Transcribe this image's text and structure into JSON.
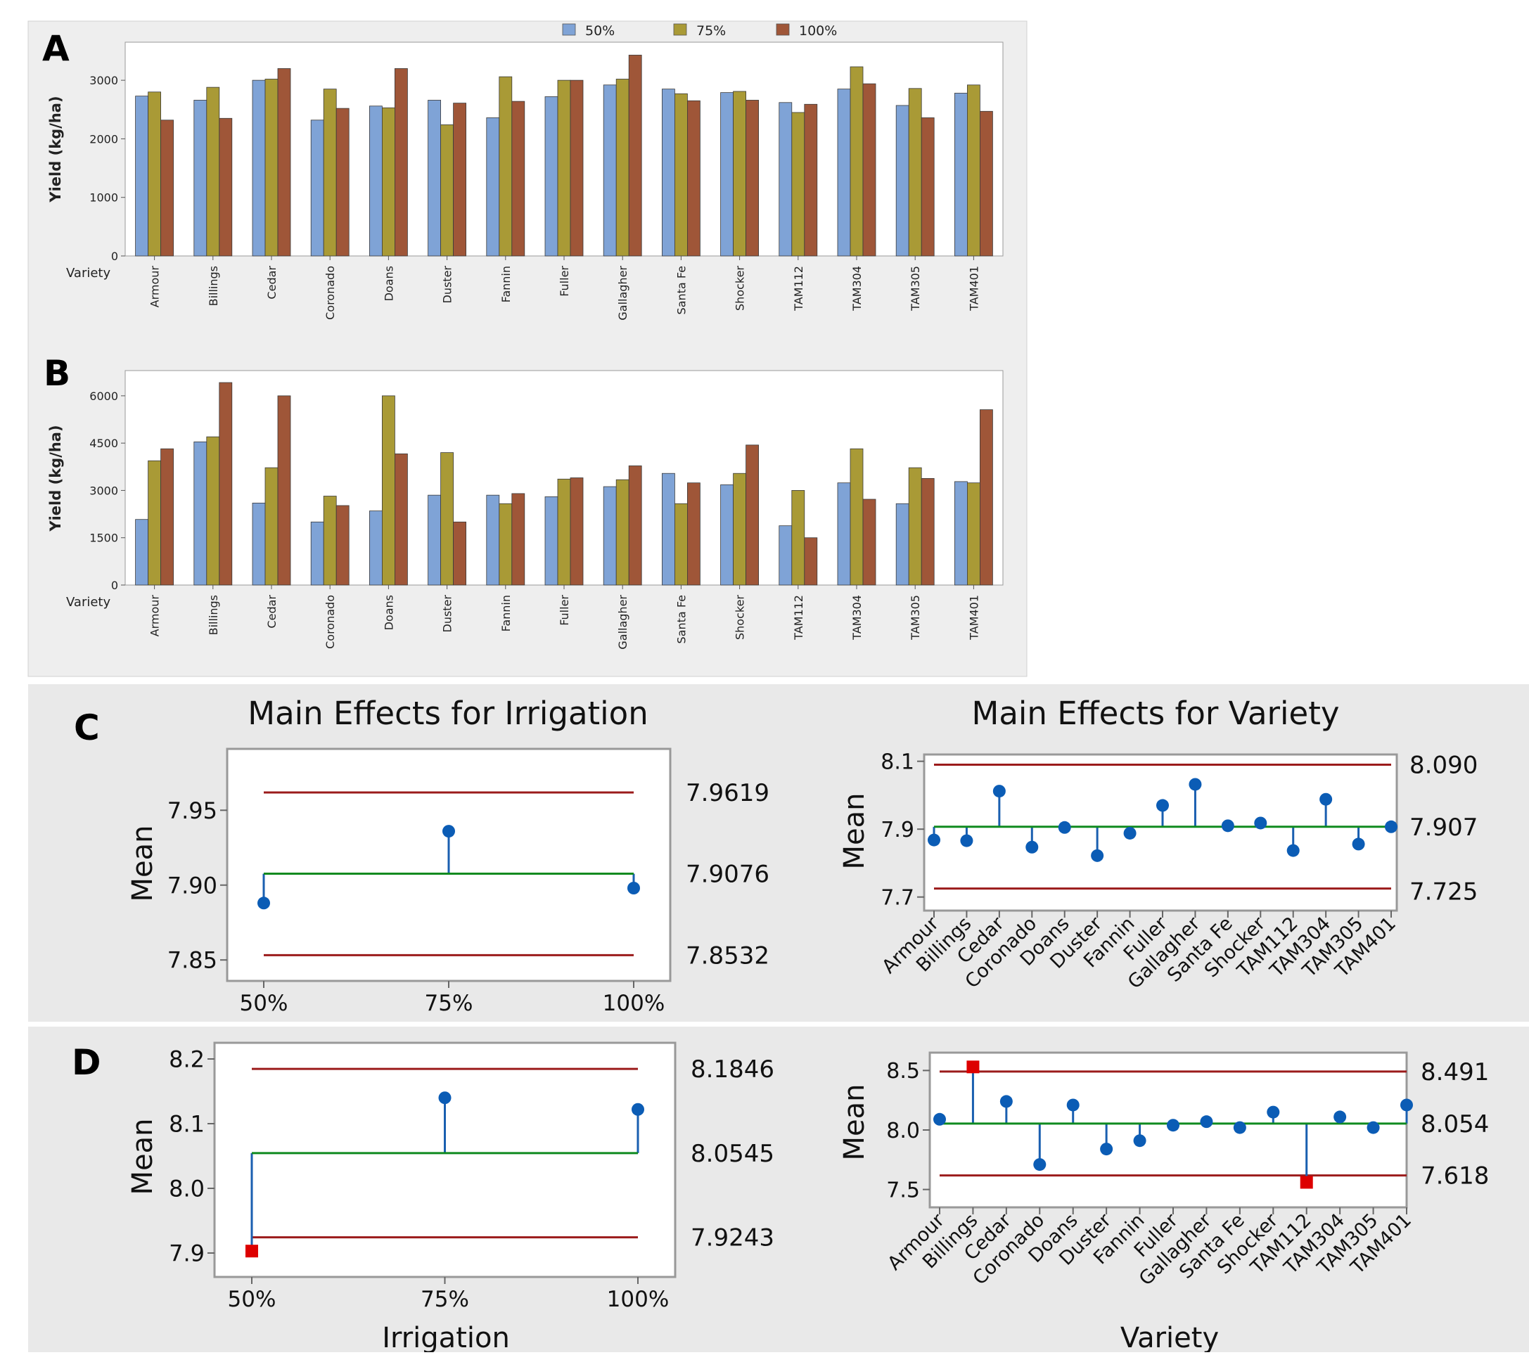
{
  "varieties": [
    "Armour",
    "Billings",
    "Cedar",
    "Coronado",
    "Doans",
    "Duster",
    "Fannin",
    "Fuller",
    "Gallagher",
    "Santa Fe",
    "Shocker",
    "TAM112",
    "TAM304",
    "TAM305",
    "TAM401"
  ],
  "legend": [
    {
      "label": "50%",
      "color": "#7fa3d6"
    },
    {
      "label": "75%",
      "color": "#a99a36"
    },
    {
      "label": "100%",
      "color": "#9f5638"
    }
  ],
  "panel_letters": {
    "a": "A",
    "b": "B",
    "c": "C",
    "d": "D"
  },
  "colors": {
    "bar_50": "#7fa3d6",
    "bar_75": "#a99a36",
    "bar_100": "#9f5638",
    "center_line": "#0f8a1f",
    "limit_line": "#9b1b1b",
    "point": "#0b5cb5",
    "flag": "#dd0000"
  },
  "chart_data": [
    {
      "id": "A",
      "type": "bar",
      "title": "",
      "xlabel": "Variety",
      "ylabel": "Yield (kg/ha)",
      "ylim": [
        0,
        3650
      ],
      "yticks": [
        0,
        1000,
        2000,
        3000
      ],
      "categories": [
        "Armour",
        "Billings",
        "Cedar",
        "Coronado",
        "Doans",
        "Duster",
        "Fannin",
        "Fuller",
        "Gallagher",
        "Santa Fe",
        "Shocker",
        "TAM112",
        "TAM304",
        "TAM305",
        "TAM401"
      ],
      "series": [
        {
          "name": "50%",
          "values": [
            2730,
            2660,
            3000,
            2320,
            2560,
            2660,
            2360,
            2720,
            2920,
            2850,
            2790,
            2620,
            2850,
            2570,
            2780
          ]
        },
        {
          "name": "75%",
          "values": [
            2800,
            2880,
            3020,
            2850,
            2530,
            2240,
            3060,
            3000,
            3020,
            2770,
            2810,
            2450,
            3230,
            2860,
            2920
          ]
        },
        {
          "name": "100%",
          "values": [
            2320,
            2350,
            3200,
            2520,
            3200,
            2610,
            2640,
            3000,
            3430,
            2650,
            2660,
            2590,
            2940,
            2360,
            2470
          ]
        }
      ],
      "grid": false,
      "legend_position": "top"
    },
    {
      "id": "B",
      "type": "bar",
      "title": "",
      "xlabel": "Variety",
      "ylabel": "Yield (kg/ha)",
      "ylim": [
        0,
        6800
      ],
      "yticks": [
        0,
        1500,
        3000,
        4500,
        6000
      ],
      "categories": [
        "Armour",
        "Billings",
        "Cedar",
        "Coronado",
        "Doans",
        "Duster",
        "Fannin",
        "Fuller",
        "Gallagher",
        "Santa Fe",
        "Shocker",
        "TAM112",
        "TAM304",
        "TAM305",
        "TAM401"
      ],
      "series": [
        {
          "name": "50%",
          "values": [
            2080,
            4540,
            2600,
            2000,
            2350,
            2850,
            2850,
            2800,
            3120,
            3540,
            3180,
            1880,
            3240,
            2580,
            3280
          ]
        },
        {
          "name": "75%",
          "values": [
            3940,
            4700,
            3720,
            2820,
            6000,
            4200,
            2580,
            3360,
            3340,
            2580,
            3540,
            3000,
            4320,
            3720,
            3240
          ]
        },
        {
          "name": "100%",
          "values": [
            4320,
            6420,
            6000,
            2520,
            4160,
            2000,
            2900,
            3400,
            3780,
            3240,
            4440,
            1500,
            2720,
            3380,
            5560
          ]
        }
      ],
      "grid": false
    },
    {
      "id": "C-irrigation",
      "type": "line",
      "title": "Main Effects for Irrigation",
      "xlabel": "",
      "ylabel": "Mean",
      "ylim": [
        7.836,
        7.991
      ],
      "yticks": [
        "7.85",
        "7.90",
        "7.95"
      ],
      "categories": [
        "50%",
        "75%",
        "100%"
      ],
      "values": [
        7.888,
        7.936,
        7.898
      ],
      "center": 7.9076,
      "upper": 7.9619,
      "lower": 7.8532,
      "right_labels": [
        "7.9619",
        "7.9076",
        "7.8532"
      ],
      "flagged": []
    },
    {
      "id": "C-variety",
      "type": "line",
      "title": "Main Effects for Variety",
      "xlabel": "",
      "ylabel": "Mean",
      "ylim": [
        7.66,
        8.12
      ],
      "yticks": [
        "7.7",
        "7.9",
        "8.1"
      ],
      "categories": [
        "Armour",
        "Billings",
        "Cedar",
        "Coronado",
        "Doans",
        "Duster",
        "Fannin",
        "Fuller",
        "Gallagher",
        "Santa Fe",
        "Shocker",
        "TAM112",
        "TAM304",
        "TAM305",
        "TAM401"
      ],
      "values": [
        7.868,
        7.866,
        8.012,
        7.847,
        7.905,
        7.822,
        7.888,
        7.97,
        8.032,
        7.91,
        7.918,
        7.837,
        7.988,
        7.856,
        7.907
      ],
      "center": 7.907,
      "upper": 8.09,
      "lower": 7.725,
      "right_labels": [
        "8.090",
        "7.907",
        "7.725"
      ],
      "flagged": []
    },
    {
      "id": "D-irrigation",
      "type": "line",
      "title": "",
      "xlabel": "Irrigation",
      "ylabel": "Mean",
      "ylim": [
        7.863,
        8.225
      ],
      "yticks": [
        "7.9",
        "8.0",
        "8.1",
        "8.2"
      ],
      "categories": [
        "50%",
        "75%",
        "100%"
      ],
      "values": [
        7.903,
        8.14,
        8.122
      ],
      "center": 8.0545,
      "upper": 8.1846,
      "lower": 7.9243,
      "right_labels": [
        "8.1846",
        "8.0545",
        "7.9243"
      ],
      "flagged": [
        0
      ]
    },
    {
      "id": "D-variety",
      "type": "line",
      "title": "",
      "xlabel": "Variety",
      "ylabel": "Mean",
      "ylim": [
        7.35,
        8.65
      ],
      "yticks": [
        "7.5",
        "8.0",
        "8.5"
      ],
      "categories": [
        "Armour",
        "Billings",
        "Cedar",
        "Coronado",
        "Doans",
        "Duster",
        "Fannin",
        "Fuller",
        "Gallagher",
        "Santa Fe",
        "Shocker",
        "TAM112",
        "TAM304",
        "TAM305",
        "TAM401"
      ],
      "values": [
        8.09,
        8.53,
        8.24,
        7.71,
        8.21,
        7.84,
        7.91,
        8.04,
        8.07,
        8.02,
        8.15,
        7.56,
        8.11,
        8.02,
        8.21
      ],
      "center": 8.054,
      "upper": 8.491,
      "lower": 7.618,
      "right_labels": [
        "8.491",
        "8.054",
        "7.618"
      ],
      "flagged": [
        1,
        11
      ]
    }
  ]
}
